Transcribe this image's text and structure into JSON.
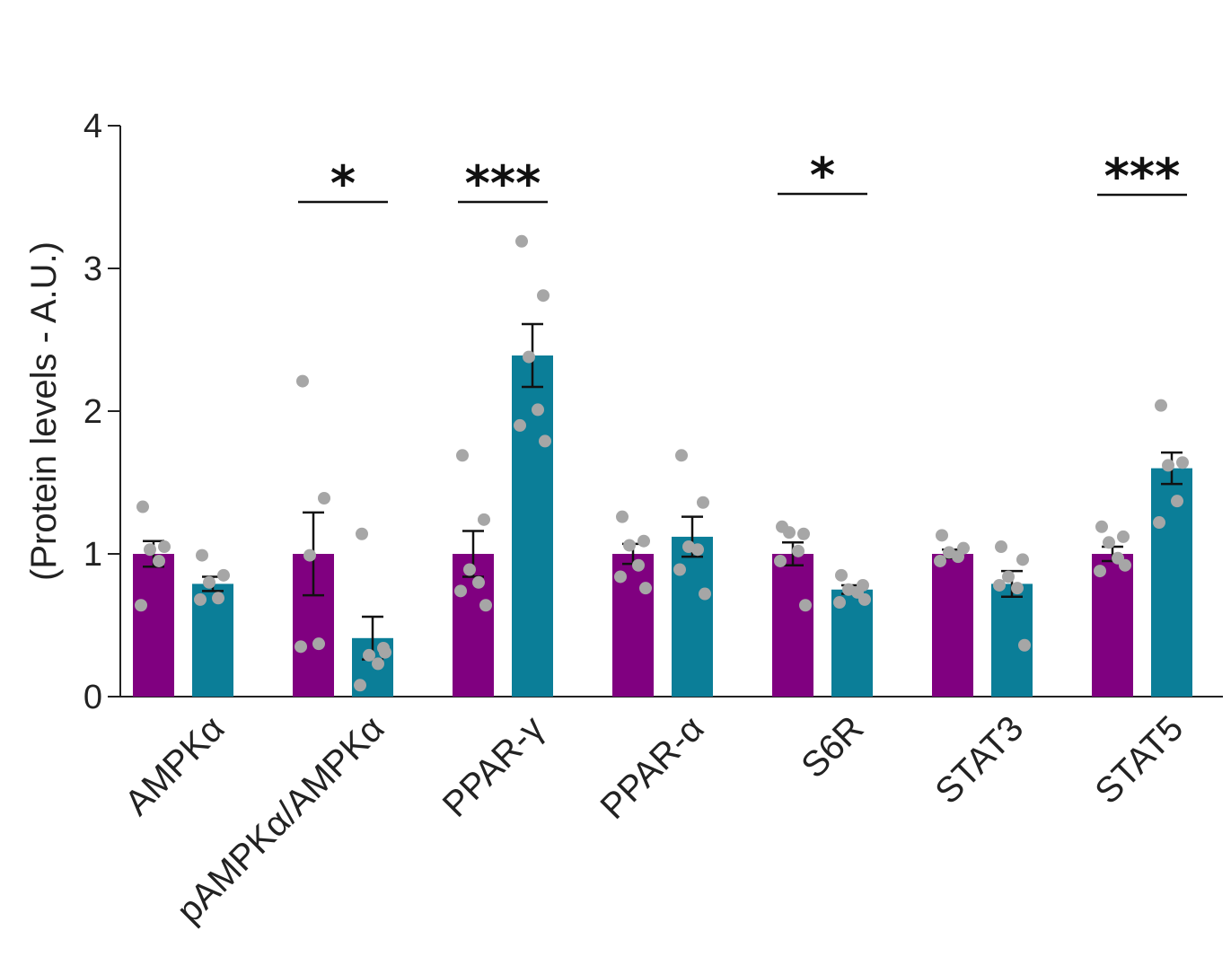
{
  "chart_data": {
    "type": "bar",
    "ylabel": "(Protein levels - A.U.)",
    "ylim": [
      0,
      4
    ],
    "yticks": [
      "0",
      "1",
      "2",
      "3",
      "4"
    ],
    "categories": [
      "AMPKα",
      "pAMPKα/AMPKα",
      "PPAR-γ",
      "PPAR-α",
      "S6R",
      "STAT3",
      "STAT5"
    ],
    "series": [
      {
        "color": "#800080",
        "values": [
          1.0,
          1.0,
          1.0,
          1.0,
          1.0,
          1.0,
          1.0
        ],
        "errors": [
          0.09,
          0.29,
          0.16,
          0.07,
          0.08,
          0.03,
          0.05
        ],
        "points": [
          [
            1.33,
            1.05,
            1.03,
            0.95,
            0.64
          ],
          [
            2.21,
            1.39,
            0.99,
            0.37,
            0.35
          ],
          [
            1.69,
            1.24,
            0.89,
            0.8,
            0.74,
            0.64
          ],
          [
            1.26,
            1.09,
            1.06,
            0.92,
            0.84,
            0.76
          ],
          [
            1.19,
            1.14,
            1.15,
            1.02,
            0.95,
            0.64
          ],
          [
            1.13,
            1.04,
            1.01,
            0.98,
            0.95
          ],
          [
            1.19,
            1.12,
            1.08,
            0.97,
            0.88,
            0.92
          ]
        ]
      },
      {
        "color": "#0b7e98",
        "values": [
          0.79,
          0.41,
          2.39,
          1.12,
          0.75,
          0.79,
          1.6
        ],
        "errors": [
          0.05,
          0.15,
          0.22,
          0.14,
          0.03,
          0.09,
          0.11
        ],
        "points": [
          [
            0.99,
            0.85,
            0.8,
            0.69,
            0.68
          ],
          [
            1.14,
            0.34,
            0.29,
            0.23,
            0.08,
            0.31
          ],
          [
            3.19,
            2.81,
            2.38,
            2.01,
            1.9,
            1.79
          ],
          [
            1.69,
            1.36,
            1.05,
            1.03,
            0.89,
            0.72
          ],
          [
            0.85,
            0.78,
            0.75,
            0.73,
            0.66,
            0.68
          ],
          [
            1.05,
            0.96,
            0.84,
            0.76,
            0.78,
            0.36
          ],
          [
            2.04,
            1.64,
            1.62,
            1.37,
            1.22
          ]
        ]
      }
    ],
    "significance": [
      {
        "category_index": 1,
        "label": "*"
      },
      {
        "category_index": 2,
        "label": "***"
      },
      {
        "category_index": 4,
        "label": "*"
      },
      {
        "category_index": 6,
        "label": "***"
      }
    ],
    "point_color": "#a6a6a6",
    "grid": false,
    "legend": "none"
  }
}
